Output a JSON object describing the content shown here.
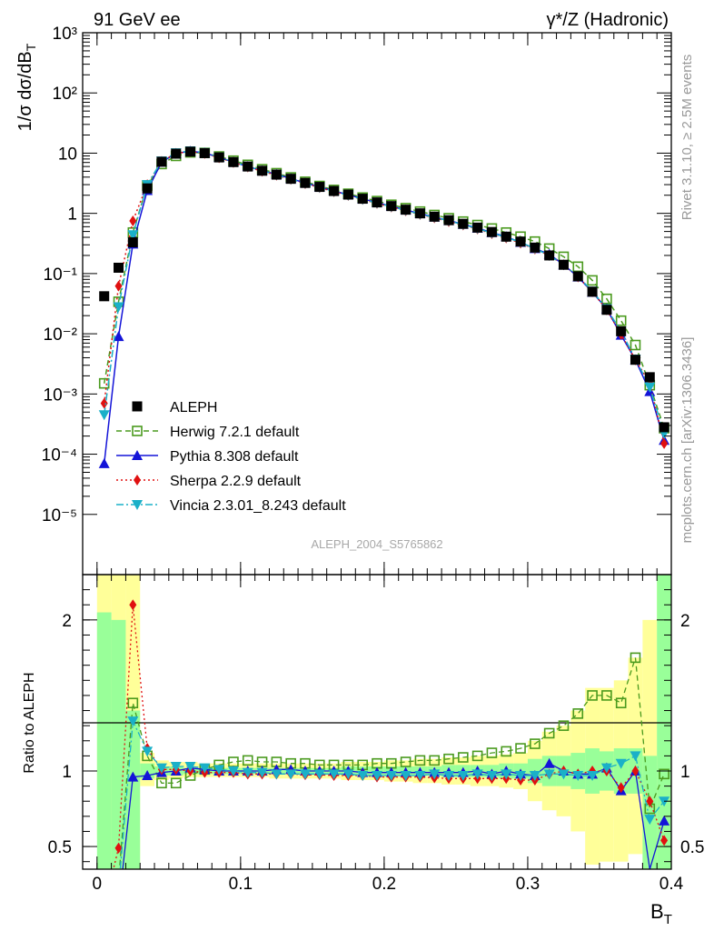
{
  "header": {
    "left": "91 GeV ee",
    "right": "γ*/Z (Hadronic)"
  },
  "side_labels": {
    "rivet": "Rivet 3.1.10, ≥ 2.5M events",
    "mcplots": "mcplots.cern.ch [arXiv:1306.3436]"
  },
  "analysis_id": "ALEPH_2004_S5765862",
  "chart_data": {
    "type": "scatter",
    "main": {
      "ylabel": "1/σ dσ/dB_T",
      "yscale": "log",
      "ylim": [
        1e-06,
        1000
      ],
      "yticks": [
        {
          "value": 1000,
          "label": "10³"
        },
        {
          "value": 100,
          "label": "10²"
        },
        {
          "value": 10,
          "label": "10"
        },
        {
          "value": 1,
          "label": "1"
        },
        {
          "value": 0.1,
          "label": "10⁻¹"
        },
        {
          "value": 0.01,
          "label": "10⁻²"
        },
        {
          "value": 0.001,
          "label": "10⁻³"
        },
        {
          "value": 0.0001,
          "label": "10⁻⁴"
        },
        {
          "value": 1e-05,
          "label": "10⁻⁵"
        }
      ]
    },
    "ratio": {
      "ylabel": "Ratio to ALEPH",
      "ylim": [
        0.35,
        2.3
      ],
      "yticks": [
        {
          "value": 0.5,
          "label": "0.5"
        },
        {
          "value": 1,
          "label": "1"
        },
        {
          "value": 2,
          "label": "2"
        }
      ]
    },
    "xlabel": "B_T",
    "xlim": [
      -0.01,
      0.4
    ],
    "xticks": [
      {
        "value": 0,
        "label": "0"
      },
      {
        "value": 0.1,
        "label": "0.1"
      },
      {
        "value": 0.2,
        "label": "0.2"
      },
      {
        "value": 0.3,
        "label": "0.3"
      },
      {
        "value": 0.4,
        "label": "0.4"
      }
    ],
    "legend_position": "lower-left",
    "x": [
      0.005,
      0.015,
      0.025,
      0.035,
      0.045,
      0.055,
      0.065,
      0.075,
      0.085,
      0.095,
      0.105,
      0.115,
      0.125,
      0.135,
      0.145,
      0.155,
      0.165,
      0.175,
      0.185,
      0.195,
      0.205,
      0.215,
      0.225,
      0.235,
      0.245,
      0.255,
      0.265,
      0.275,
      0.285,
      0.295,
      0.305,
      0.315,
      0.325,
      0.335,
      0.345,
      0.355,
      0.365,
      0.375,
      0.385,
      0.395
    ],
    "data": {
      "name": "ALEPH",
      "x": [
        0.005,
        0.015,
        0.025,
        0.035,
        0.045,
        0.055,
        0.065,
        0.075,
        0.085,
        0.095,
        0.105,
        0.115,
        0.125,
        0.135,
        0.145,
        0.155,
        0.165,
        0.175,
        0.185,
        0.195,
        0.205,
        0.215,
        0.225,
        0.235,
        0.245,
        0.255,
        0.265,
        0.275,
        0.285,
        0.295,
        0.305,
        0.315,
        0.325,
        0.335,
        0.345,
        0.355,
        0.365,
        0.375,
        0.385,
        0.395
      ],
      "y": [
        0.042,
        0.125,
        0.33,
        2.6,
        7.2,
        9.8,
        10.6,
        10.0,
        8.5,
        7.1,
        6.0,
        5.1,
        4.4,
        3.75,
        3.2,
        2.75,
        2.35,
        2.05,
        1.75,
        1.52,
        1.32,
        1.15,
        1.0,
        0.88,
        0.77,
        0.67,
        0.58,
        0.49,
        0.41,
        0.34,
        0.27,
        0.2,
        0.14,
        0.09,
        0.05,
        0.025,
        0.011,
        0.0037,
        0.0019,
        0.00028
      ],
      "color": "#000000"
    },
    "series": [
      {
        "name": "Herwig 7.2.1 default",
        "color": "#4a9a1e",
        "marker": "open-square",
        "dash": "dashed",
        "y": [
          0.0015,
          0.034,
          0.48,
          2.9,
          6.6,
          9.0,
          10.3,
          10.1,
          8.8,
          7.5,
          6.4,
          5.4,
          4.65,
          3.95,
          3.35,
          2.85,
          2.45,
          2.12,
          1.83,
          1.6,
          1.39,
          1.22,
          1.07,
          0.94,
          0.83,
          0.73,
          0.64,
          0.56,
          0.48,
          0.41,
          0.34,
          0.26,
          0.19,
          0.13,
          0.077,
          0.038,
          0.0165,
          0.0065,
          0.0014,
          0.00027
        ],
        "ratio": [
          0.0,
          0.27,
          1.45,
          1.1,
          0.92,
          0.92,
          0.97,
          1.01,
          1.04,
          1.06,
          1.07,
          1.06,
          1.06,
          1.05,
          1.05,
          1.04,
          1.04,
          1.04,
          1.04,
          1.05,
          1.05,
          1.06,
          1.07,
          1.07,
          1.08,
          1.09,
          1.1,
          1.12,
          1.13,
          1.15,
          1.18,
          1.25,
          1.3,
          1.38,
          1.5,
          1.5,
          1.45,
          1.75,
          0.75,
          0.98
        ]
      },
      {
        "name": "Pythia 8.308 default",
        "color": "#1414d8",
        "marker": "triangle-up",
        "dash": "solid",
        "y": [
          7e-05,
          0.009,
          0.31,
          2.4,
          7.1,
          9.9,
          10.8,
          10.1,
          8.5,
          7.1,
          6.0,
          5.1,
          4.45,
          3.77,
          3.2,
          2.75,
          2.35,
          2.04,
          1.74,
          1.51,
          1.31,
          1.14,
          0.99,
          0.87,
          0.76,
          0.66,
          0.57,
          0.48,
          0.41,
          0.33,
          0.26,
          0.21,
          0.14,
          0.088,
          0.049,
          0.026,
          0.0095,
          0.0037,
          0.0011,
          0.00017
        ],
        "ratio": [
          0.0,
          0.0,
          0.96,
          0.97,
          0.99,
          1.0,
          1.02,
          1.01,
          1.0,
          1.0,
          1.0,
          1.0,
          1.01,
          1.01,
          1.0,
          1.0,
          1.0,
          1.0,
          0.99,
          0.99,
          0.99,
          0.99,
          0.99,
          0.99,
          0.99,
          0.99,
          1.0,
          0.98,
          1.0,
          0.98,
          0.97,
          1.05,
          1.0,
          0.98,
          0.98,
          1.02,
          0.87,
          1.0,
          0.35,
          0.67
        ]
      },
      {
        "name": "Sherpa 2.2.9 default",
        "color": "#e01010",
        "marker": "diamond",
        "dash": "dotted",
        "y": [
          0.0007,
          0.062,
          0.75,
          3.0,
          7.3,
          9.9,
          10.6,
          9.9,
          8.4,
          7.0,
          5.9,
          5.0,
          4.3,
          3.67,
          3.12,
          2.68,
          2.29,
          1.98,
          1.7,
          1.46,
          1.27,
          1.1,
          0.96,
          0.84,
          0.73,
          0.64,
          0.55,
          0.46,
          0.39,
          0.32,
          0.255,
          0.2,
          0.14,
          0.088,
          0.05,
          0.025,
          0.0098,
          0.0037,
          0.0015,
          0.00015
        ],
        "ratio": [
          0.0,
          0.49,
          2.1,
          1.15,
          1.01,
          1.01,
          1.0,
          0.99,
          0.99,
          0.99,
          0.98,
          0.98,
          0.98,
          0.98,
          0.975,
          0.975,
          0.97,
          0.97,
          0.97,
          0.96,
          0.96,
          0.96,
          0.96,
          0.955,
          0.95,
          0.95,
          0.95,
          0.95,
          0.95,
          0.94,
          0.94,
          0.98,
          1.0,
          0.98,
          1.0,
          1.0,
          0.89,
          1.0,
          0.8,
          0.54
        ]
      },
      {
        "name": "Vincia 2.3.01_8.243 default",
        "color": "#1ab0c8",
        "marker": "triangle-down",
        "dash": "dashdot",
        "y": [
          0.00045,
          0.028,
          0.44,
          3.0,
          7.4,
          10.1,
          10.9,
          10.2,
          8.6,
          7.1,
          6.0,
          5.1,
          4.35,
          3.7,
          3.15,
          2.7,
          2.32,
          2.0,
          1.71,
          1.48,
          1.29,
          1.12,
          0.97,
          0.86,
          0.75,
          0.65,
          0.56,
          0.47,
          0.4,
          0.33,
          0.26,
          0.2,
          0.14,
          0.09,
          0.051,
          0.026,
          0.011,
          0.0038,
          0.0013,
          0.00022
        ],
        "ratio": [
          0.0,
          0.22,
          1.33,
          1.13,
          1.02,
          1.03,
          1.03,
          1.02,
          1.01,
          1.0,
          0.99,
          0.99,
          0.98,
          0.98,
          0.98,
          0.98,
          0.98,
          0.98,
          0.97,
          0.97,
          0.97,
          0.97,
          0.97,
          0.98,
          0.97,
          0.97,
          0.98,
          0.97,
          0.98,
          0.97,
          0.97,
          0.98,
          0.98,
          0.97,
          0.97,
          1.02,
          1.05,
          1.1,
          0.68,
          0.8
        ]
      }
    ],
    "bands": {
      "yellow": [
        [
          0.55,
          2.3
        ],
        [
          0.35,
          2.3
        ],
        [
          0.35,
          2.3
        ],
        [
          0.9,
          1.12
        ],
        [
          0.94,
          1.07
        ],
        [
          0.95,
          1.06
        ],
        [
          0.96,
          1.06
        ],
        [
          0.96,
          1.05
        ],
        [
          0.96,
          1.05
        ],
        [
          0.96,
          1.05
        ],
        [
          0.96,
          1.05
        ],
        [
          0.96,
          1.05
        ],
        [
          0.95,
          1.05
        ],
        [
          0.95,
          1.05
        ],
        [
          0.95,
          1.05
        ],
        [
          0.95,
          1.05
        ],
        [
          0.95,
          1.05
        ],
        [
          0.94,
          1.06
        ],
        [
          0.94,
          1.06
        ],
        [
          0.94,
          1.06
        ],
        [
          0.93,
          1.07
        ],
        [
          0.93,
          1.07
        ],
        [
          0.92,
          1.08
        ],
        [
          0.92,
          1.08
        ],
        [
          0.91,
          1.09
        ],
        [
          0.91,
          1.09
        ],
        [
          0.9,
          1.1
        ],
        [
          0.9,
          1.1
        ],
        [
          0.89,
          1.11
        ],
        [
          0.88,
          1.12
        ],
        [
          0.8,
          1.2
        ],
        [
          0.74,
          1.26
        ],
        [
          0.7,
          1.3
        ],
        [
          0.6,
          1.4
        ],
        [
          0.38,
          1.55
        ],
        [
          0.4,
          1.55
        ],
        [
          0.4,
          1.6
        ],
        [
          0.45,
          1.75
        ],
        [
          0.35,
          2.0
        ],
        [
          0.35,
          2.3
        ]
      ],
      "green": [
        [
          0.35,
          2.05
        ],
        [
          0.35,
          2.0
        ],
        [
          0.35,
          1.4
        ],
        [
          0.95,
          1.05
        ],
        [
          0.97,
          1.03
        ],
        [
          0.97,
          1.03
        ],
        [
          0.98,
          1.02
        ],
        [
          0.98,
          1.02
        ],
        [
          0.98,
          1.02
        ],
        [
          0.98,
          1.02
        ],
        [
          0.98,
          1.02
        ],
        [
          0.98,
          1.02
        ],
        [
          0.98,
          1.02
        ],
        [
          0.98,
          1.02
        ],
        [
          0.98,
          1.02
        ],
        [
          0.98,
          1.02
        ],
        [
          0.98,
          1.02
        ],
        [
          0.97,
          1.03
        ],
        [
          0.97,
          1.03
        ],
        [
          0.97,
          1.03
        ],
        [
          0.97,
          1.03
        ],
        [
          0.97,
          1.03
        ],
        [
          0.97,
          1.03
        ],
        [
          0.97,
          1.03
        ],
        [
          0.96,
          1.04
        ],
        [
          0.96,
          1.04
        ],
        [
          0.96,
          1.04
        ],
        [
          0.96,
          1.04
        ],
        [
          0.95,
          1.05
        ],
        [
          0.95,
          1.05
        ],
        [
          0.92,
          1.08
        ],
        [
          0.9,
          1.1
        ],
        [
          0.9,
          1.1
        ],
        [
          0.88,
          1.12
        ],
        [
          0.85,
          1.15
        ],
        [
          0.87,
          1.13
        ],
        [
          0.85,
          1.15
        ],
        [
          0.85,
          1.15
        ],
        [
          0.35,
          1.1
        ],
        [
          0.35,
          2.3
        ]
      ]
    }
  }
}
